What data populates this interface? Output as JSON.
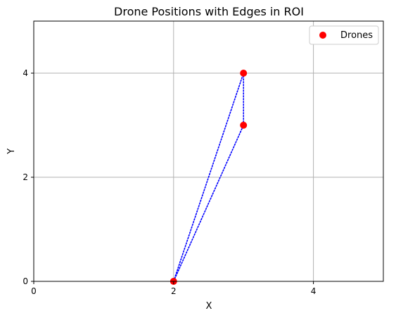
{
  "chart_data": {
    "type": "scatter",
    "title": "Drone Positions with Edges in ROI",
    "xlabel": "X",
    "ylabel": "Y",
    "xlim": [
      0,
      5
    ],
    "ylim": [
      0,
      5
    ],
    "xticks": [
      0,
      2,
      4
    ],
    "yticks": [
      0,
      2,
      4
    ],
    "grid": true,
    "legend_position": "top-right",
    "series": [
      {
        "name": "Drones",
        "color": "#ff0000",
        "points": [
          {
            "x": 2,
            "y": 0
          },
          {
            "x": 3,
            "y": 4
          },
          {
            "x": 3,
            "y": 3
          }
        ]
      }
    ],
    "edges": {
      "color": "#0000ff",
      "style": "dotted",
      "pairs": [
        [
          0,
          1
        ],
        [
          0,
          2
        ],
        [
          1,
          2
        ]
      ]
    }
  }
}
